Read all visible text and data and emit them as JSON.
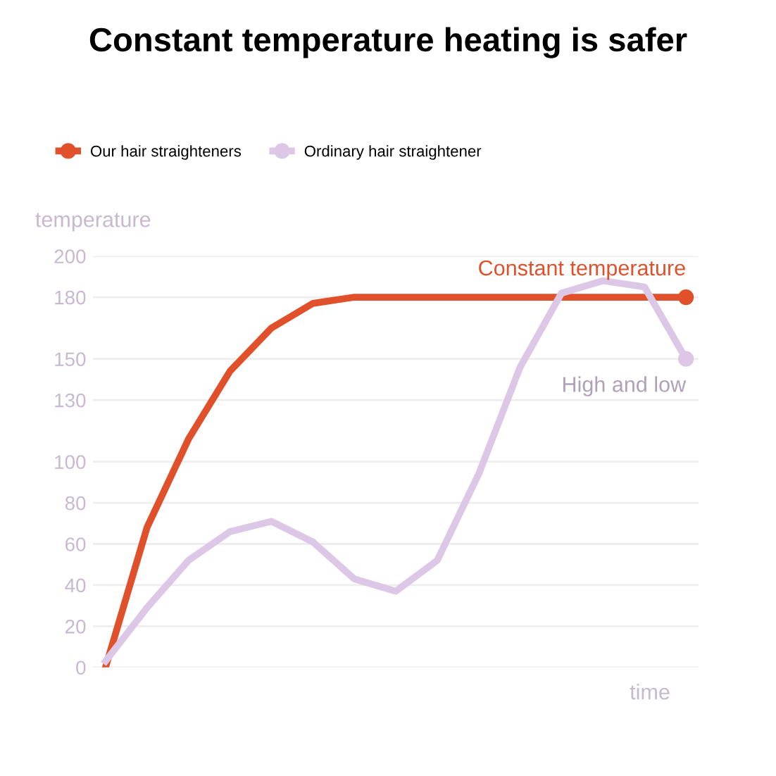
{
  "chart_data": {
    "type": "line",
    "title": "Constant temperature heating is safer",
    "xlabel": "time",
    "ylabel": "temperature",
    "categories": [
      null,
      null,
      null,
      null,
      null,
      null,
      null,
      null,
      null,
      null,
      null,
      null,
      null,
      null,
      null
    ],
    "series": [
      {
        "name": "Our hair straighteners",
        "color": "#e0502a",
        "values": [
          0,
          68,
          111,
          144,
          165,
          177,
          180,
          180,
          180,
          180,
          180,
          180,
          180,
          180,
          180
        ]
      },
      {
        "name": "Ordinary hair straightener",
        "color": "#dcc8e6",
        "values": [
          3,
          29,
          52,
          66,
          71,
          61,
          43,
          37,
          52,
          94,
          146,
          182,
          188,
          185,
          150
        ]
      }
    ],
    "annotations": [
      "Constant temperature",
      "High and low"
    ],
    "ylim": [
      0,
      200
    ],
    "yticks": [
      0,
      20,
      40,
      60,
      80,
      100,
      130,
      150,
      180,
      200
    ],
    "grid": "y",
    "legend": "top left",
    "line_style": "solid"
  }
}
